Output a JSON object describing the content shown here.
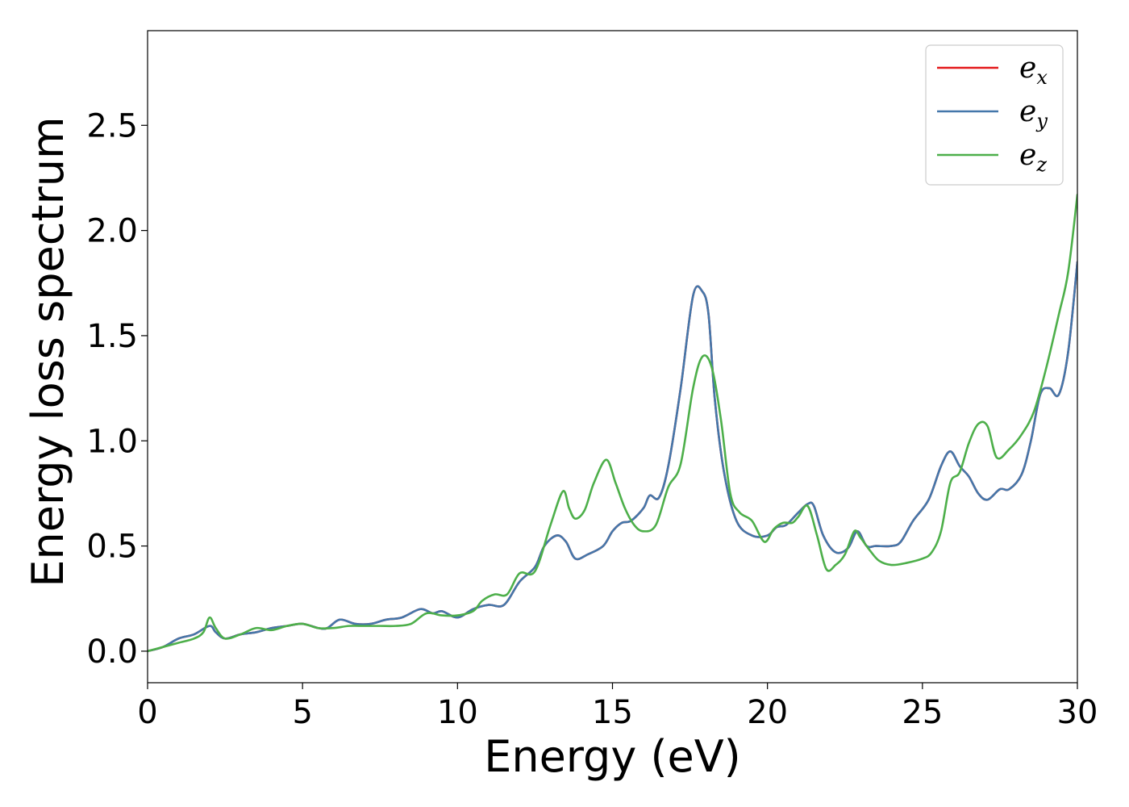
{
  "chart_data": {
    "type": "line",
    "xlabel": "Energy (eV)",
    "ylabel": "Energy loss spectrum",
    "xlim": [
      0,
      30
    ],
    "ylim": [
      -0.15,
      2.95
    ],
    "xticks": [
      0,
      5,
      10,
      15,
      20,
      25,
      30
    ],
    "yticks": [
      0.0,
      0.5,
      1.0,
      1.5,
      2.0,
      2.5
    ],
    "xtick_labels": [
      "0",
      "5",
      "10",
      "15",
      "20",
      "25",
      "30"
    ],
    "ytick_labels": [
      "0.0",
      "0.5",
      "1.0",
      "1.5",
      "2.0",
      "2.5"
    ],
    "grid": false,
    "legend_position": "top-right",
    "series": [
      {
        "name": "e_x",
        "label_base": "e",
        "label_sub": "x",
        "color": "#e41a1c",
        "x": [
          0,
          0.5,
          1.0,
          1.5,
          2.0,
          2.2,
          2.5,
          3.0,
          3.5,
          4.0,
          4.5,
          5.0,
          5.5,
          5.8,
          6.2,
          6.7,
          7.2,
          7.7,
          8.2,
          8.8,
          9.2,
          9.5,
          10.0,
          10.5,
          11.0,
          11.5,
          12.0,
          12.5,
          12.8,
          13.2,
          13.5,
          13.8,
          14.2,
          14.7,
          15.0,
          15.3,
          15.6,
          16.0,
          16.2,
          16.5,
          16.8,
          17.2,
          17.6,
          17.9,
          18.1,
          18.3,
          18.6,
          19.0,
          19.5,
          20.0,
          20.3,
          20.6,
          21.0,
          21.3,
          21.5,
          21.8,
          22.2,
          22.6,
          22.9,
          23.2,
          23.5,
          24.0,
          24.3,
          24.7,
          25.2,
          25.6,
          25.9,
          26.2,
          26.5,
          26.8,
          27.1,
          27.5,
          27.8,
          28.2,
          28.5,
          28.8,
          29.1,
          29.4,
          29.7,
          30.0
        ],
        "y": [
          0.0,
          0.02,
          0.06,
          0.08,
          0.12,
          0.09,
          0.06,
          0.08,
          0.09,
          0.11,
          0.12,
          0.13,
          0.11,
          0.11,
          0.15,
          0.13,
          0.13,
          0.15,
          0.16,
          0.2,
          0.18,
          0.19,
          0.16,
          0.2,
          0.22,
          0.22,
          0.33,
          0.4,
          0.5,
          0.55,
          0.52,
          0.44,
          0.46,
          0.5,
          0.57,
          0.61,
          0.62,
          0.68,
          0.74,
          0.73,
          0.88,
          1.25,
          1.69,
          1.71,
          1.6,
          1.2,
          0.85,
          0.62,
          0.55,
          0.55,
          0.59,
          0.6,
          0.66,
          0.7,
          0.69,
          0.55,
          0.47,
          0.49,
          0.57,
          0.5,
          0.5,
          0.5,
          0.52,
          0.62,
          0.72,
          0.88,
          0.95,
          0.88,
          0.83,
          0.75,
          0.72,
          0.77,
          0.77,
          0.84,
          1.0,
          1.22,
          1.25,
          1.22,
          1.42,
          1.85
        ]
      },
      {
        "name": "e_y",
        "label_base": "e",
        "label_sub": "y",
        "color": "#4477aa",
        "x": [
          0,
          0.5,
          1.0,
          1.5,
          2.0,
          2.2,
          2.5,
          3.0,
          3.5,
          4.0,
          4.5,
          5.0,
          5.5,
          5.8,
          6.2,
          6.7,
          7.2,
          7.7,
          8.2,
          8.8,
          9.2,
          9.5,
          10.0,
          10.5,
          11.0,
          11.5,
          12.0,
          12.5,
          12.8,
          13.2,
          13.5,
          13.8,
          14.2,
          14.7,
          15.0,
          15.3,
          15.6,
          16.0,
          16.2,
          16.5,
          16.8,
          17.2,
          17.6,
          17.9,
          18.1,
          18.3,
          18.6,
          19.0,
          19.5,
          20.0,
          20.3,
          20.6,
          21.0,
          21.3,
          21.5,
          21.8,
          22.2,
          22.6,
          22.9,
          23.2,
          23.5,
          24.0,
          24.3,
          24.7,
          25.2,
          25.6,
          25.9,
          26.2,
          26.5,
          26.8,
          27.1,
          27.5,
          27.8,
          28.2,
          28.5,
          28.8,
          29.1,
          29.4,
          29.7,
          30.0
        ],
        "y": [
          0.0,
          0.02,
          0.06,
          0.08,
          0.12,
          0.09,
          0.06,
          0.08,
          0.09,
          0.11,
          0.12,
          0.13,
          0.11,
          0.11,
          0.15,
          0.13,
          0.13,
          0.15,
          0.16,
          0.2,
          0.18,
          0.19,
          0.16,
          0.2,
          0.22,
          0.22,
          0.33,
          0.4,
          0.5,
          0.55,
          0.52,
          0.44,
          0.46,
          0.5,
          0.57,
          0.61,
          0.62,
          0.68,
          0.74,
          0.73,
          0.88,
          1.25,
          1.69,
          1.71,
          1.6,
          1.2,
          0.85,
          0.62,
          0.55,
          0.55,
          0.59,
          0.6,
          0.66,
          0.7,
          0.69,
          0.55,
          0.47,
          0.49,
          0.57,
          0.5,
          0.5,
          0.5,
          0.52,
          0.62,
          0.72,
          0.88,
          0.95,
          0.88,
          0.83,
          0.75,
          0.72,
          0.77,
          0.77,
          0.84,
          1.0,
          1.22,
          1.25,
          1.22,
          1.42,
          1.85
        ]
      },
      {
        "name": "e_z",
        "label_base": "e",
        "label_sub": "z",
        "color": "#4daf4a",
        "x": [
          0,
          0.5,
          1.0,
          1.5,
          1.8,
          2.0,
          2.2,
          2.5,
          3.0,
          3.5,
          4.0,
          4.5,
          5.0,
          5.5,
          6.0,
          6.5,
          7.0,
          7.5,
          8.0,
          8.5,
          9.0,
          9.5,
          10.0,
          10.5,
          10.8,
          11.2,
          11.6,
          12.0,
          12.5,
          13.0,
          13.4,
          13.6,
          13.8,
          14.1,
          14.4,
          14.8,
          15.1,
          15.4,
          15.7,
          16.0,
          16.4,
          16.8,
          17.2,
          17.6,
          17.9,
          18.2,
          18.5,
          18.8,
          19.1,
          19.5,
          19.9,
          20.2,
          20.5,
          20.8,
          21.0,
          21.3,
          21.6,
          21.9,
          22.2,
          22.5,
          22.8,
          23.0,
          23.3,
          23.6,
          24.0,
          24.5,
          25.0,
          25.3,
          25.6,
          25.9,
          26.2,
          26.5,
          26.8,
          27.1,
          27.4,
          27.8,
          28.2,
          28.6,
          29.0,
          29.4,
          29.7,
          30.0
        ],
        "y": [
          0.0,
          0.02,
          0.04,
          0.06,
          0.09,
          0.16,
          0.11,
          0.06,
          0.08,
          0.11,
          0.1,
          0.12,
          0.13,
          0.11,
          0.11,
          0.12,
          0.12,
          0.12,
          0.12,
          0.13,
          0.18,
          0.17,
          0.17,
          0.19,
          0.24,
          0.27,
          0.27,
          0.37,
          0.38,
          0.6,
          0.76,
          0.68,
          0.63,
          0.67,
          0.8,
          0.91,
          0.8,
          0.68,
          0.6,
          0.57,
          0.6,
          0.78,
          0.89,
          1.25,
          1.4,
          1.35,
          1.1,
          0.75,
          0.66,
          0.62,
          0.52,
          0.58,
          0.61,
          0.61,
          0.64,
          0.69,
          0.55,
          0.39,
          0.41,
          0.46,
          0.57,
          0.54,
          0.48,
          0.43,
          0.41,
          0.42,
          0.44,
          0.47,
          0.57,
          0.8,
          0.85,
          0.99,
          1.08,
          1.07,
          0.92,
          0.96,
          1.03,
          1.14,
          1.35,
          1.6,
          1.8,
          2.17
        ]
      }
    ]
  }
}
